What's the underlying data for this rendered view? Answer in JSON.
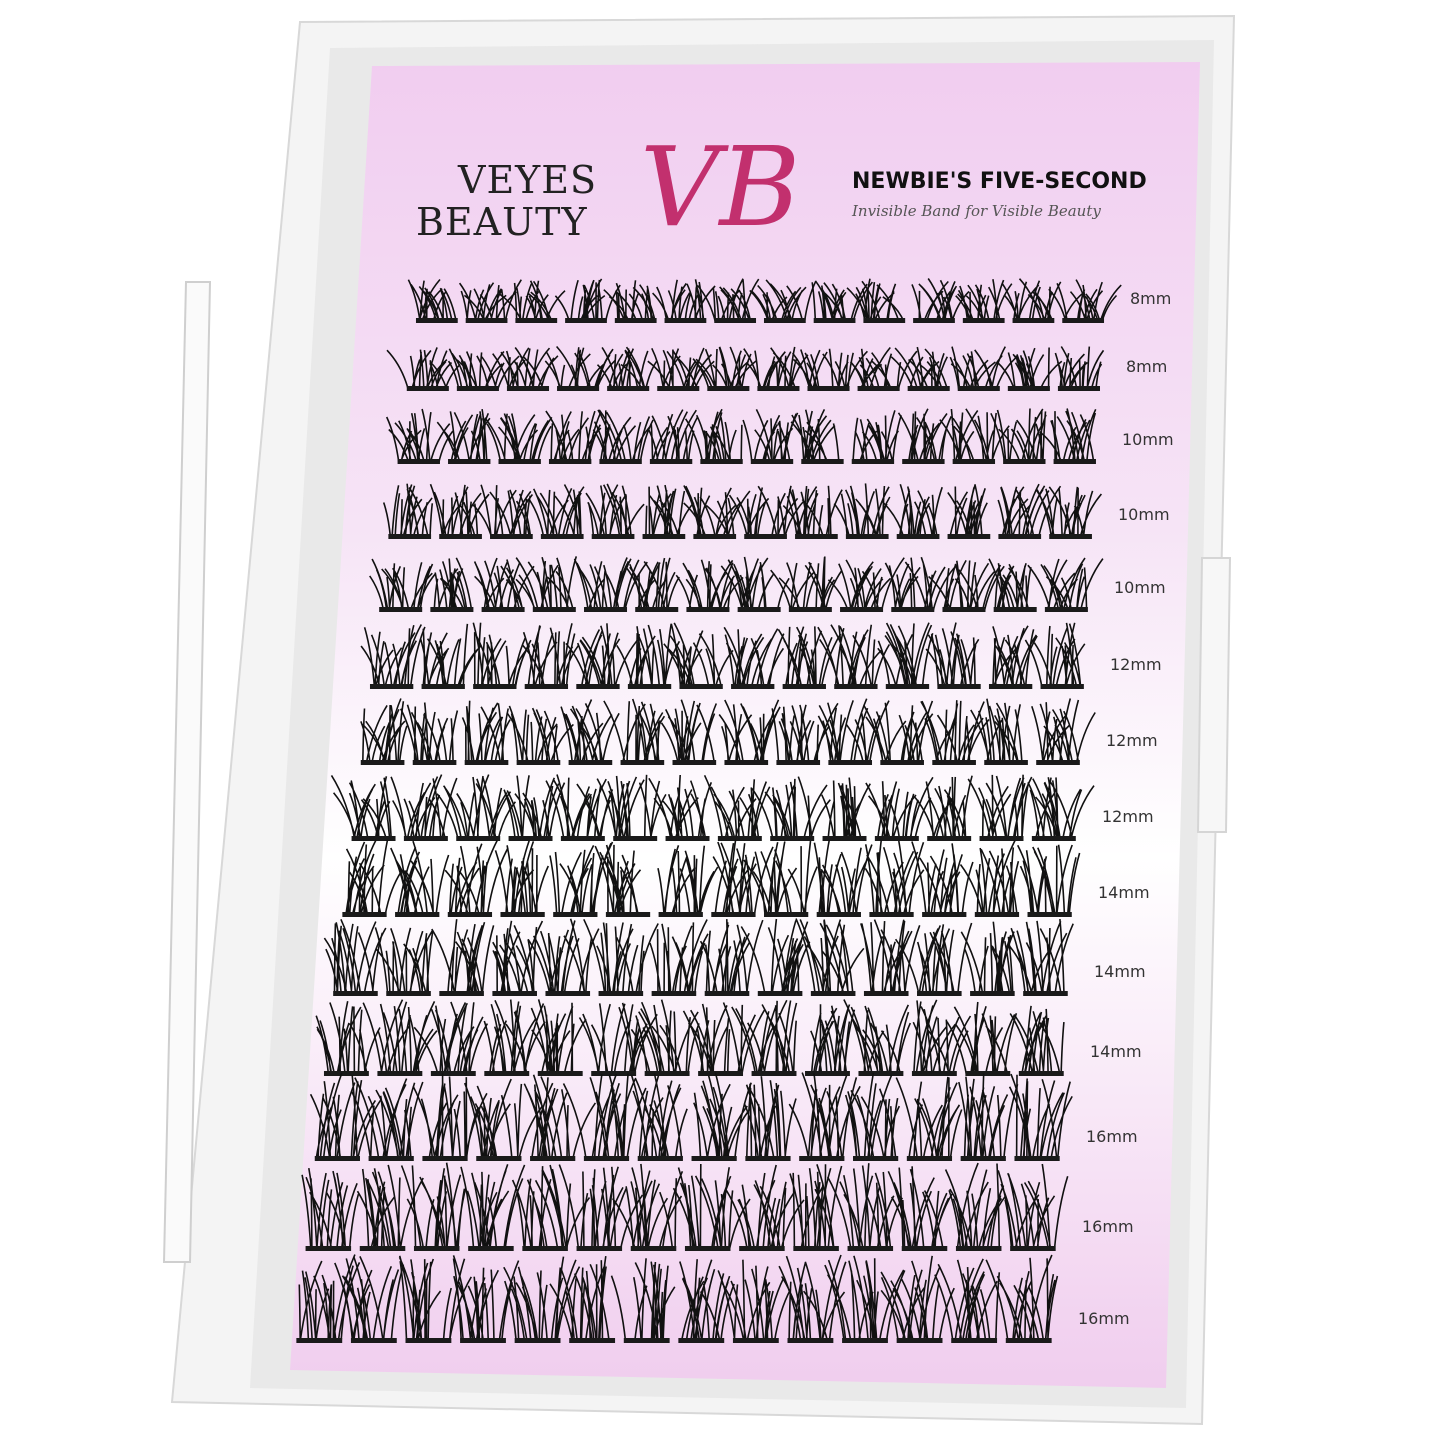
{
  "brand": {
    "name_line1": "VEYES",
    "name_line2": "BEAUTY",
    "monogram": "VB",
    "headline": "NEWBIE'S FIVE-SECOND",
    "tagline": "Invisible Band for Visible Beauty"
  },
  "rows": [
    {
      "length": "8mm"
    },
    {
      "length": "8mm"
    },
    {
      "length": "10mm"
    },
    {
      "length": "10mm"
    },
    {
      "length": "10mm"
    },
    {
      "length": "12mm"
    },
    {
      "length": "12mm"
    },
    {
      "length": "12mm"
    },
    {
      "length": "14mm"
    },
    {
      "length": "14mm"
    },
    {
      "length": "14mm"
    },
    {
      "length": "16mm"
    },
    {
      "length": "16mm"
    },
    {
      "length": "16mm"
    }
  ],
  "clusters_per_row": 14,
  "colors": {
    "case": "#f2f2f2",
    "card_pink": "#f1cdf0",
    "monogram": "#c2306e",
    "lash": "#111111"
  }
}
